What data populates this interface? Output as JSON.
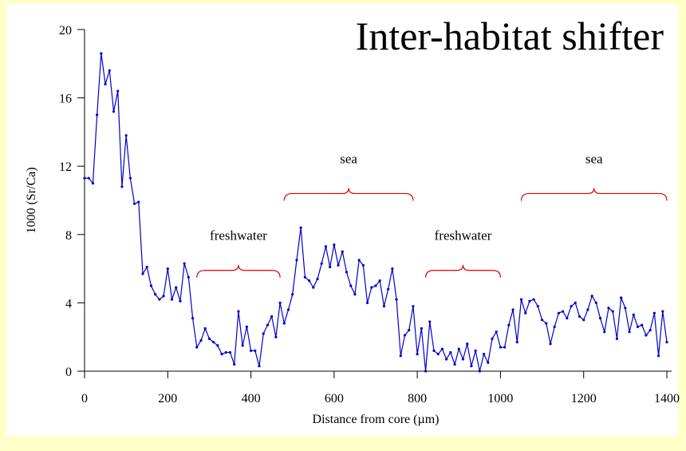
{
  "chart_data": {
    "type": "line",
    "title": "Inter-habitat shifter",
    "xlabel": "Distance from core (µm)",
    "ylabel": "1000 (Sr/Ca)",
    "xlim": [
      0,
      1400
    ],
    "ylim": [
      0,
      20
    ],
    "xticks": [
      0,
      200,
      400,
      600,
      800,
      1000,
      1200,
      1400
    ],
    "yticks": [
      0,
      4,
      8,
      12,
      16,
      20
    ],
    "x": [
      0,
      10,
      20,
      30,
      40,
      50,
      60,
      70,
      80,
      90,
      100,
      110,
      120,
      130,
      140,
      150,
      160,
      170,
      180,
      190,
      200,
      210,
      220,
      230,
      240,
      250,
      260,
      270,
      280,
      290,
      300,
      310,
      320,
      330,
      340,
      350,
      360,
      370,
      380,
      390,
      400,
      410,
      420,
      430,
      440,
      450,
      460,
      470,
      480,
      490,
      500,
      510,
      520,
      530,
      540,
      550,
      560,
      570,
      580,
      590,
      600,
      610,
      620,
      630,
      640,
      650,
      660,
      670,
      680,
      690,
      700,
      710,
      720,
      730,
      740,
      750,
      760,
      770,
      780,
      790,
      800,
      810,
      820,
      830,
      840,
      850,
      860,
      870,
      880,
      890,
      900,
      910,
      920,
      930,
      940,
      950,
      960,
      970,
      980,
      990,
      1000,
      1010,
      1020,
      1030,
      1040,
      1050,
      1060,
      1070,
      1080,
      1090,
      1100,
      1110,
      1120,
      1130,
      1140,
      1150,
      1160,
      1170,
      1180,
      1190,
      1200,
      1210,
      1220,
      1230,
      1240,
      1250,
      1260,
      1270,
      1280,
      1290,
      1300,
      1310,
      1320,
      1330,
      1340,
      1350,
      1360,
      1370,
      1380,
      1390,
      1400
    ],
    "series": [
      {
        "color": "#0000cc",
        "values": [
          11.3,
          11.3,
          11.0,
          15.0,
          18.6,
          16.8,
          17.6,
          15.2,
          16.4,
          10.8,
          13.8,
          11.3,
          9.8,
          9.9,
          5.7,
          6.1,
          5.0,
          4.5,
          4.2,
          4.4,
          6.0,
          4.2,
          4.9,
          4.1,
          6.3,
          5.5,
          3.1,
          1.4,
          1.8,
          2.5,
          1.9,
          1.7,
          1.5,
          1.0,
          1.1,
          1.1,
          0.4,
          3.5,
          1.5,
          2.6,
          1.2,
          1.2,
          0.3,
          2.2,
          2.7,
          3.2,
          2.0,
          4.0,
          2.8,
          3.6,
          4.5,
          6.5,
          8.4,
          5.5,
          5.3,
          4.9,
          5.4,
          6.3,
          7.3,
          6.1,
          7.4,
          6.2,
          7.0,
          5.8,
          5.0,
          4.5,
          6.5,
          6.2,
          4.0,
          4.9,
          5.0,
          5.3,
          3.8,
          4.8,
          6.0,
          4.2,
          0.9,
          2.1,
          2.4,
          3.8,
          1.0,
          2.5,
          0.0,
          2.9,
          1.2,
          1.0,
          1.3,
          0.7,
          1.1,
          0.4,
          1.3,
          0.7,
          1.6,
          0.3,
          1.2,
          0.0,
          1.0,
          0.5,
          1.9,
          2.3,
          1.4,
          1.4,
          2.7,
          3.6,
          1.7,
          4.2,
          3.4,
          4.1,
          4.2,
          3.8,
          3.0,
          2.8,
          1.6,
          2.6,
          3.4,
          3.5,
          3.1,
          3.8,
          4.0,
          3.2,
          3.0,
          3.6,
          4.4,
          4.0,
          3.1,
          2.3,
          3.7,
          3.5,
          1.9,
          4.3,
          3.7,
          2.3,
          3.3,
          2.6,
          2.7,
          2.1,
          2.4,
          3.4,
          0.9,
          3.5,
          1.7
        ]
      }
    ],
    "annotations": [
      {
        "text": "freshwater",
        "x": [
          270,
          470
        ],
        "y": 5.9,
        "color": "#e00000"
      },
      {
        "text": "sea",
        "x": [
          480,
          790
        ],
        "y": 10.4,
        "color": "#e00000"
      },
      {
        "text": "freshwater",
        "x": [
          820,
          1000
        ],
        "y": 5.9,
        "color": "#e00000"
      },
      {
        "text": "sea",
        "x": [
          1050,
          1400
        ],
        "y": 10.4,
        "color": "#e00000"
      }
    ]
  }
}
